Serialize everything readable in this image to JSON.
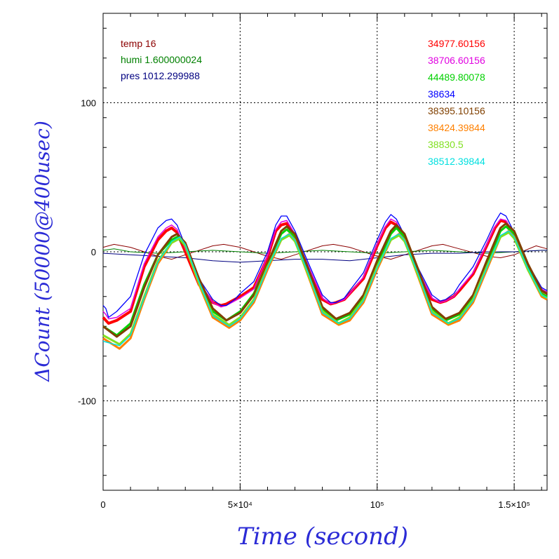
{
  "chart_data": {
    "type": "line",
    "title": "",
    "xlabel": "Time (second)",
    "ylabel": "ΔCount (50000@400usec)",
    "xlim": [
      0,
      162000
    ],
    "ylim": [
      -160,
      160
    ],
    "x_ticks": [
      {
        "value": 0,
        "label": "0"
      },
      {
        "value": 50000,
        "label": "5×10⁴"
      },
      {
        "value": 100000,
        "label": "10⁵"
      },
      {
        "value": 150000,
        "label": "1.5×10⁵"
      }
    ],
    "y_ticks": [
      {
        "value": -100,
        "label": "-100"
      },
      {
        "value": 0,
        "label": "0"
      },
      {
        "value": 100,
        "label": "100"
      }
    ],
    "grid": true,
    "legend_placement": "top-left and top-right",
    "env_legend": [
      {
        "name": "temp",
        "value": "16",
        "color": "#8b0000"
      },
      {
        "name": "humi",
        "value": "1.600000024",
        "color": "#008000"
      },
      {
        "name": "pres",
        "value": "1012.299988",
        "color": "#000080"
      }
    ],
    "channel_legend": [
      {
        "label": "34977.60156",
        "color": "#ff0000"
      },
      {
        "label": "38706.60156",
        "color": "#e000e0"
      },
      {
        "label": "44489.80078",
        "color": "#00d000"
      },
      {
        "label": "38634",
        "color": "#0000ff"
      },
      {
        "label": "38395.10156",
        "color": "#804000"
      },
      {
        "label": "38424.39844",
        "color": "#ff8000"
      },
      {
        "label": "38830.5",
        "color": "#80e020"
      },
      {
        "label": "38512.39844",
        "color": "#00e0e0"
      }
    ],
    "series": [
      {
        "name": "34977.60156",
        "color": "#ff0000",
        "width": 4,
        "x": [
          0,
          1000,
          2000,
          5000,
          10000,
          15000,
          20000,
          23000,
          25000,
          27000,
          30000,
          35000,
          40000,
          43000,
          45000,
          48000,
          50000,
          55000,
          60000,
          63000,
          65000,
          67000,
          70000,
          75000,
          80000,
          83000,
          85000,
          88000,
          90000,
          95000,
          100000,
          103000,
          105000,
          107000,
          110000,
          115000,
          120000,
          123000,
          125000,
          128000,
          130000,
          135000,
          140000,
          143000,
          145000,
          147000,
          150000,
          155000,
          160000,
          162000
        ],
        "y": [
          -44,
          -46,
          -48,
          -46,
          -40,
          -10,
          8,
          14,
          16,
          13,
          0,
          -22,
          -34,
          -36,
          -35,
          -32,
          -30,
          -24,
          -4,
          14,
          18,
          19,
          10,
          -12,
          -32,
          -35,
          -34,
          -32,
          -28,
          -18,
          4,
          16,
          20,
          18,
          8,
          -14,
          -32,
          -34,
          -33,
          -30,
          -26,
          -15,
          4,
          16,
          21,
          20,
          10,
          -10,
          -26,
          -28
        ]
      },
      {
        "name": "38706.60156",
        "color": "#e000e0",
        "width": 1.5,
        "x": [
          0,
          1000,
          2000,
          5000,
          10000,
          15000,
          20000,
          23000,
          25000,
          27000,
          30000,
          35000,
          40000,
          43000,
          45000,
          48000,
          50000,
          55000,
          60000,
          63000,
          65000,
          67000,
          70000,
          75000,
          80000,
          83000,
          85000,
          88000,
          90000,
          95000,
          100000,
          103000,
          105000,
          107000,
          110000,
          115000,
          120000,
          123000,
          125000,
          128000,
          130000,
          135000,
          140000,
          143000,
          145000,
          147000,
          150000,
          155000,
          160000,
          162000
        ],
        "y": [
          -40,
          -42,
          -45,
          -44,
          -38,
          -8,
          10,
          16,
          18,
          15,
          2,
          -20,
          -34,
          -37,
          -36,
          -33,
          -31,
          -25,
          -3,
          15,
          20,
          21,
          12,
          -10,
          -31,
          -35,
          -34,
          -32,
          -28,
          -17,
          5,
          17,
          22,
          20,
          9,
          -13,
          -31,
          -34,
          -33,
          -30,
          -25,
          -14,
          5,
          17,
          22,
          21,
          11,
          -9,
          -25,
          -27
        ]
      },
      {
        "name": "44489.80078",
        "color": "#00d000",
        "width": 3,
        "x": [
          0,
          5000,
          10000,
          15000,
          20000,
          25000,
          27000,
          30000,
          35000,
          40000,
          45000,
          50000,
          55000,
          60000,
          65000,
          67000,
          70000,
          75000,
          80000,
          85000,
          90000,
          95000,
          100000,
          105000,
          107000,
          110000,
          115000,
          120000,
          125000,
          130000,
          135000,
          140000,
          145000,
          147000,
          150000,
          155000,
          160000,
          162000
        ],
        "y": [
          -50,
          -56,
          -48,
          -22,
          -2,
          8,
          10,
          4,
          -20,
          -40,
          -46,
          -40,
          -28,
          -8,
          12,
          15,
          10,
          -14,
          -38,
          -46,
          -42,
          -30,
          -8,
          12,
          16,
          10,
          -14,
          -38,
          -46,
          -42,
          -30,
          -8,
          14,
          17,
          12,
          -10,
          -28,
          -30
        ]
      },
      {
        "name": "38634",
        "color": "#0000ff",
        "width": 1.3,
        "x": [
          0,
          1000,
          2000,
          5000,
          10000,
          15000,
          20000,
          23000,
          25000,
          27000,
          30000,
          35000,
          40000,
          43000,
          45000,
          48000,
          50000,
          55000,
          60000,
          63000,
          65000,
          67000,
          70000,
          75000,
          80000,
          83000,
          85000,
          88000,
          90000,
          95000,
          100000,
          103000,
          105000,
          107000,
          110000,
          115000,
          120000,
          123000,
          125000,
          128000,
          130000,
          135000,
          140000,
          143000,
          145000,
          147000,
          150000,
          155000,
          160000,
          162000
        ],
        "y": [
          -36,
          -38,
          -44,
          -40,
          -30,
          -2,
          16,
          21,
          22,
          18,
          4,
          -18,
          -32,
          -36,
          -36,
          -32,
          -28,
          -20,
          0,
          18,
          24,
          24,
          14,
          -8,
          -29,
          -34,
          -34,
          -31,
          -26,
          -14,
          8,
          20,
          25,
          22,
          11,
          -11,
          -29,
          -33,
          -32,
          -28,
          -22,
          -10,
          8,
          20,
          26,
          24,
          13,
          -8,
          -24,
          -26
        ]
      },
      {
        "name": "38395.10156",
        "color": "#804000",
        "width": 3,
        "x": [
          0,
          5000,
          10000,
          15000,
          20000,
          25000,
          27000,
          30000,
          35000,
          40000,
          45000,
          50000,
          55000,
          60000,
          65000,
          67000,
          70000,
          75000,
          80000,
          85000,
          90000,
          95000,
          100000,
          105000,
          107000,
          110000,
          115000,
          120000,
          125000,
          130000,
          135000,
          140000,
          145000,
          147000,
          150000,
          155000,
          160000,
          162000
        ],
        "y": [
          -50,
          -57,
          -50,
          -24,
          -2,
          10,
          12,
          6,
          -18,
          -38,
          -46,
          -41,
          -29,
          -8,
          14,
          17,
          12,
          -12,
          -37,
          -45,
          -41,
          -29,
          -6,
          14,
          18,
          12,
          -12,
          -37,
          -45,
          -41,
          -29,
          -6,
          16,
          19,
          14,
          -8,
          -26,
          -28
        ]
      },
      {
        "name": "38424.39844",
        "color": "#ff8000",
        "width": 3,
        "x": [
          0,
          6000,
          10000,
          15000,
          20000,
          25000,
          28000,
          30000,
          35000,
          40000,
          46000,
          50000,
          55000,
          60000,
          65000,
          68000,
          70000,
          75000,
          80000,
          86000,
          90000,
          95000,
          100000,
          105000,
          108000,
          110000,
          115000,
          120000,
          126000,
          130000,
          135000,
          140000,
          145000,
          148000,
          150000,
          155000,
          160000,
          162000
        ],
        "y": [
          -58,
          -65,
          -58,
          -32,
          -8,
          6,
          9,
          4,
          -22,
          -44,
          -51,
          -46,
          -34,
          -12,
          8,
          12,
          8,
          -17,
          -42,
          -49,
          -46,
          -34,
          -12,
          8,
          12,
          8,
          -17,
          -42,
          -49,
          -46,
          -34,
          -12,
          10,
          14,
          10,
          -12,
          -30,
          -32
        ]
      },
      {
        "name": "38830.5",
        "color": "#80e020",
        "width": 3,
        "x": [
          0,
          6000,
          10000,
          15000,
          20000,
          25000,
          28000,
          30000,
          35000,
          40000,
          46000,
          50000,
          55000,
          60000,
          65000,
          68000,
          70000,
          75000,
          80000,
          86000,
          90000,
          95000,
          100000,
          105000,
          108000,
          110000,
          115000,
          120000,
          126000,
          130000,
          135000,
          140000,
          145000,
          148000,
          150000,
          155000,
          160000,
          162000
        ],
        "y": [
          -56,
          -62,
          -55,
          -30,
          -6,
          6,
          9,
          4,
          -21,
          -42,
          -49,
          -44,
          -32,
          -10,
          8,
          11,
          7,
          -16,
          -40,
          -48,
          -44,
          -32,
          -10,
          8,
          11,
          7,
          -16,
          -40,
          -48,
          -44,
          -32,
          -10,
          10,
          13,
          9,
          -12,
          -29,
          -31
        ]
      },
      {
        "name": "38512.39844",
        "color": "#00e0e0",
        "width": 1.5,
        "x": [
          0,
          6000,
          10000,
          15000,
          20000,
          25000,
          28000,
          30000,
          35000,
          40000,
          46000,
          50000,
          55000,
          60000,
          65000,
          68000,
          70000,
          75000,
          80000,
          86000,
          90000,
          95000,
          100000,
          105000,
          108000,
          110000,
          115000,
          120000,
          126000,
          130000,
          135000,
          140000,
          145000,
          148000,
          150000,
          155000,
          160000,
          162000
        ],
        "y": [
          -60,
          -63,
          -56,
          -31,
          -7,
          7,
          10,
          5,
          -20,
          -43,
          -50,
          -45,
          -33,
          -11,
          9,
          12,
          8,
          -15,
          -41,
          -48,
          -45,
          -33,
          -11,
          9,
          12,
          8,
          -15,
          -41,
          -48,
          -45,
          -33,
          -11,
          11,
          14,
          10,
          -11,
          -29,
          -31
        ]
      },
      {
        "name": "temp",
        "color": "#8b0000",
        "width": 1,
        "x": [
          0,
          4000,
          10000,
          20000,
          25000,
          30000,
          40000,
          44000,
          50000,
          60000,
          65000,
          70000,
          80000,
          84000,
          90000,
          100000,
          105000,
          110000,
          120000,
          124000,
          130000,
          140000,
          145000,
          150000,
          158000,
          162000
        ],
        "y": [
          3,
          5,
          3,
          -3,
          -5,
          -2,
          4,
          5,
          3,
          -3,
          -5,
          -2,
          4,
          5,
          3,
          -3,
          -5,
          -2,
          4,
          5,
          2,
          -3,
          -4,
          -2,
          4,
          2
        ]
      },
      {
        "name": "humi",
        "color": "#008000",
        "width": 1,
        "x": [
          0,
          4000,
          10000,
          20000,
          30000,
          40000,
          50000,
          60000,
          70000,
          80000,
          90000,
          100000,
          110000,
          120000,
          130000,
          140000,
          150000,
          160000,
          162000
        ],
        "y": [
          1,
          2,
          0,
          -1,
          0,
          1,
          0,
          -1,
          0,
          1,
          0,
          -1,
          0,
          1,
          0,
          -1,
          0,
          1,
          1
        ]
      },
      {
        "name": "pres",
        "color": "#000080",
        "width": 1,
        "x": [
          0,
          10000,
          20000,
          30000,
          40000,
          50000,
          60000,
          70000,
          80000,
          90000,
          100000,
          110000,
          120000,
          130000,
          140000,
          150000,
          160000,
          162000
        ],
        "y": [
          -1,
          -2,
          -3,
          -4,
          -6,
          -7,
          -6,
          -5,
          -5,
          -6,
          -4,
          -2,
          -1,
          -1,
          0,
          0,
          1,
          1
        ]
      }
    ]
  }
}
